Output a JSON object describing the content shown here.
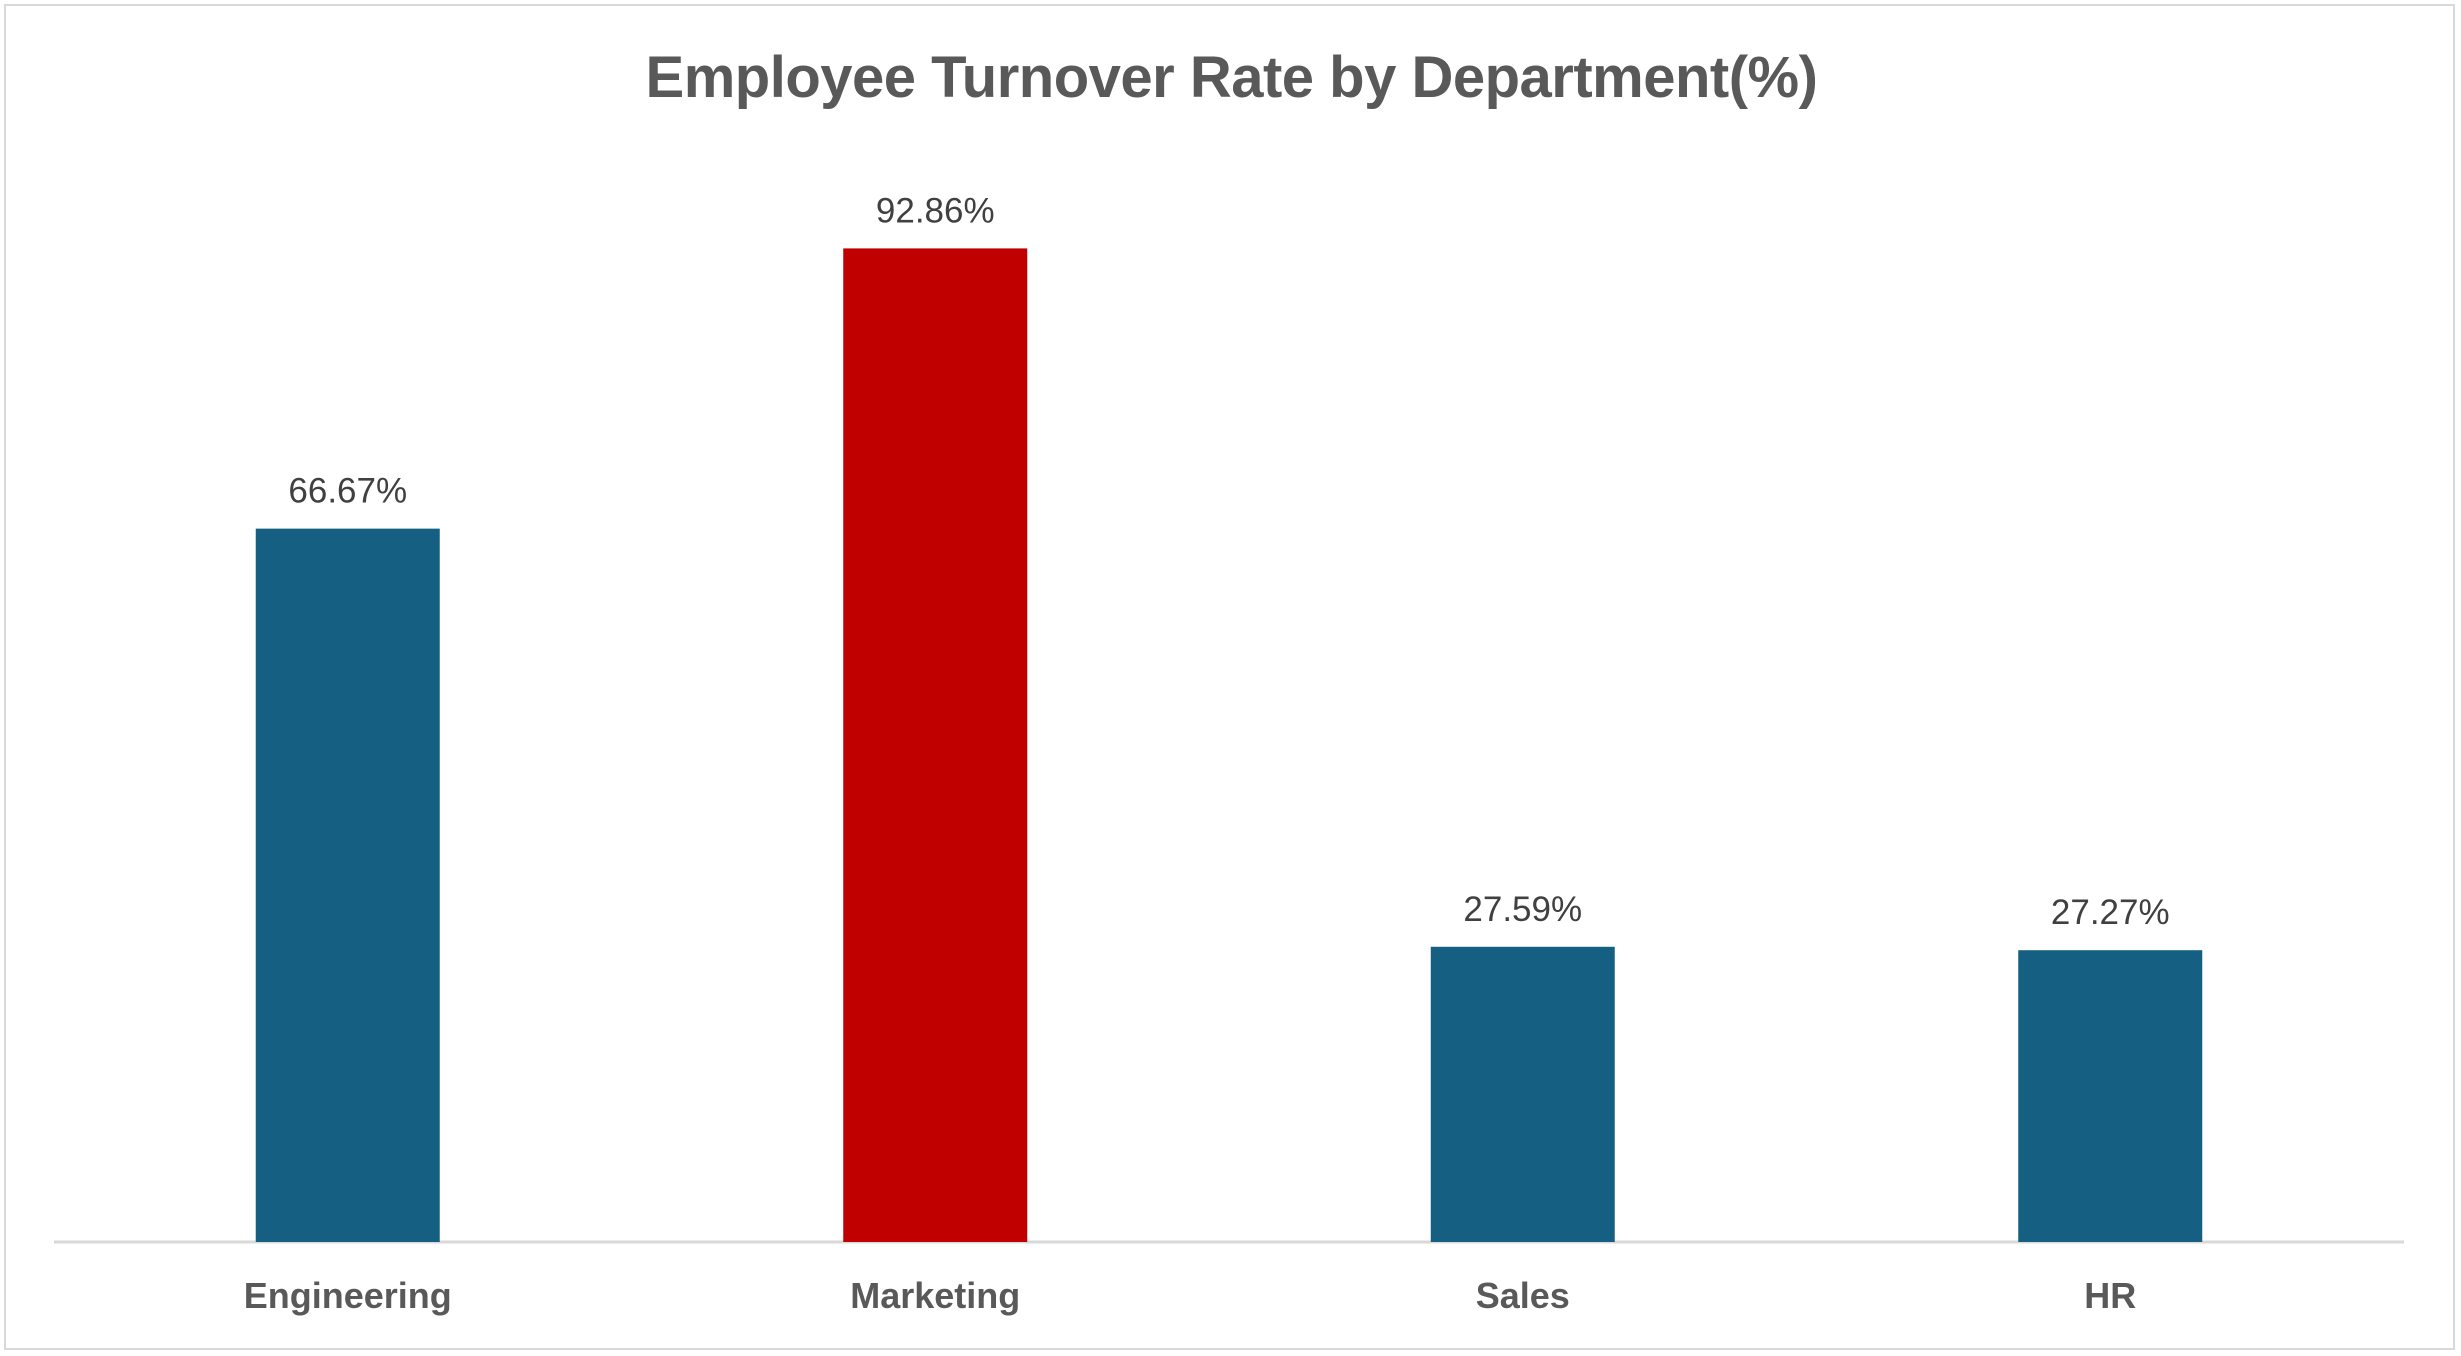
{
  "chart_data": {
    "type": "bar",
    "title": "Employee Turnover Rate by Department(%)",
    "xlabel": "",
    "ylabel": "",
    "categories": [
      "Engineering",
      "Marketing",
      "Sales",
      "HR"
    ],
    "values": [
      66.67,
      92.86,
      27.59,
      27.27
    ],
    "data_labels": [
      "66.67%",
      "92.86%",
      "27.59%",
      "27.27%"
    ],
    "ylim": [
      0,
      100
    ],
    "grid": false,
    "legend": "none",
    "colors": [
      "#156082",
      "#C00000",
      "#156082",
      "#156082"
    ],
    "axis_color": "#d9d9d9"
  }
}
